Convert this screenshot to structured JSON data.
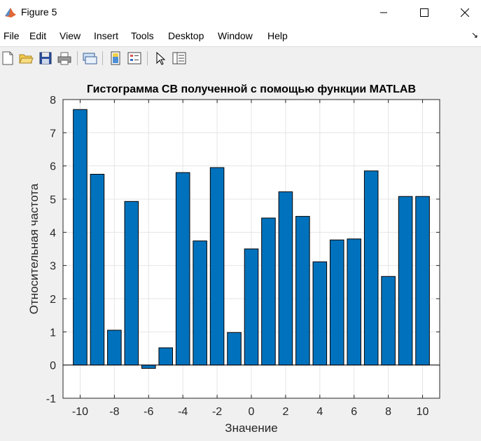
{
  "window": {
    "title": "Figure 5",
    "controls": [
      "minimize",
      "maximize",
      "close"
    ]
  },
  "menu": {
    "items": [
      "File",
      "Edit",
      "View",
      "Insert",
      "Tools",
      "Desktop",
      "Window",
      "Help"
    ]
  },
  "toolbar": {
    "icons": [
      "new-figure-icon",
      "open-file-icon",
      "save-icon",
      "print-icon",
      "link-plot-icon",
      "insert-colorbar-icon",
      "insert-legend-icon",
      "edit-plot-icon",
      "property-editor-icon"
    ]
  },
  "colors": {
    "bar_fill": "#0072BD",
    "bar_edge": "#000000",
    "axes_bg": "#ffffff",
    "figure_bg": "#f0f0f0",
    "grid": "#e5e5e5"
  },
  "chart_data": {
    "type": "bar",
    "title": "Гистограмма СВ полученной с помощью функции MATLAB",
    "xlabel": "Значение",
    "ylabel": "Относительная частота",
    "categories": [
      -10,
      -9,
      -8,
      -7,
      -6,
      -5,
      -4,
      -3,
      -2,
      -1,
      0,
      1,
      2,
      3,
      4,
      5,
      6,
      7,
      8,
      9,
      10
    ],
    "values": [
      7.7,
      5.75,
      1.05,
      4.93,
      -0.1,
      0.52,
      5.8,
      3.74,
      5.95,
      0.98,
      3.5,
      4.43,
      5.22,
      4.48,
      3.11,
      3.77,
      3.8,
      5.85,
      2.67,
      5.08,
      5.08
    ],
    "xlim": [
      -11,
      11
    ],
    "ylim": [
      -1,
      8
    ],
    "xticks": [
      "-10",
      "-8",
      "-6",
      "-4",
      "-2",
      "0",
      "2",
      "4",
      "6",
      "8",
      "10"
    ],
    "yticks": [
      "-1",
      "0",
      "1",
      "2",
      "3",
      "4",
      "5",
      "6",
      "7",
      "8"
    ],
    "grid": true
  }
}
